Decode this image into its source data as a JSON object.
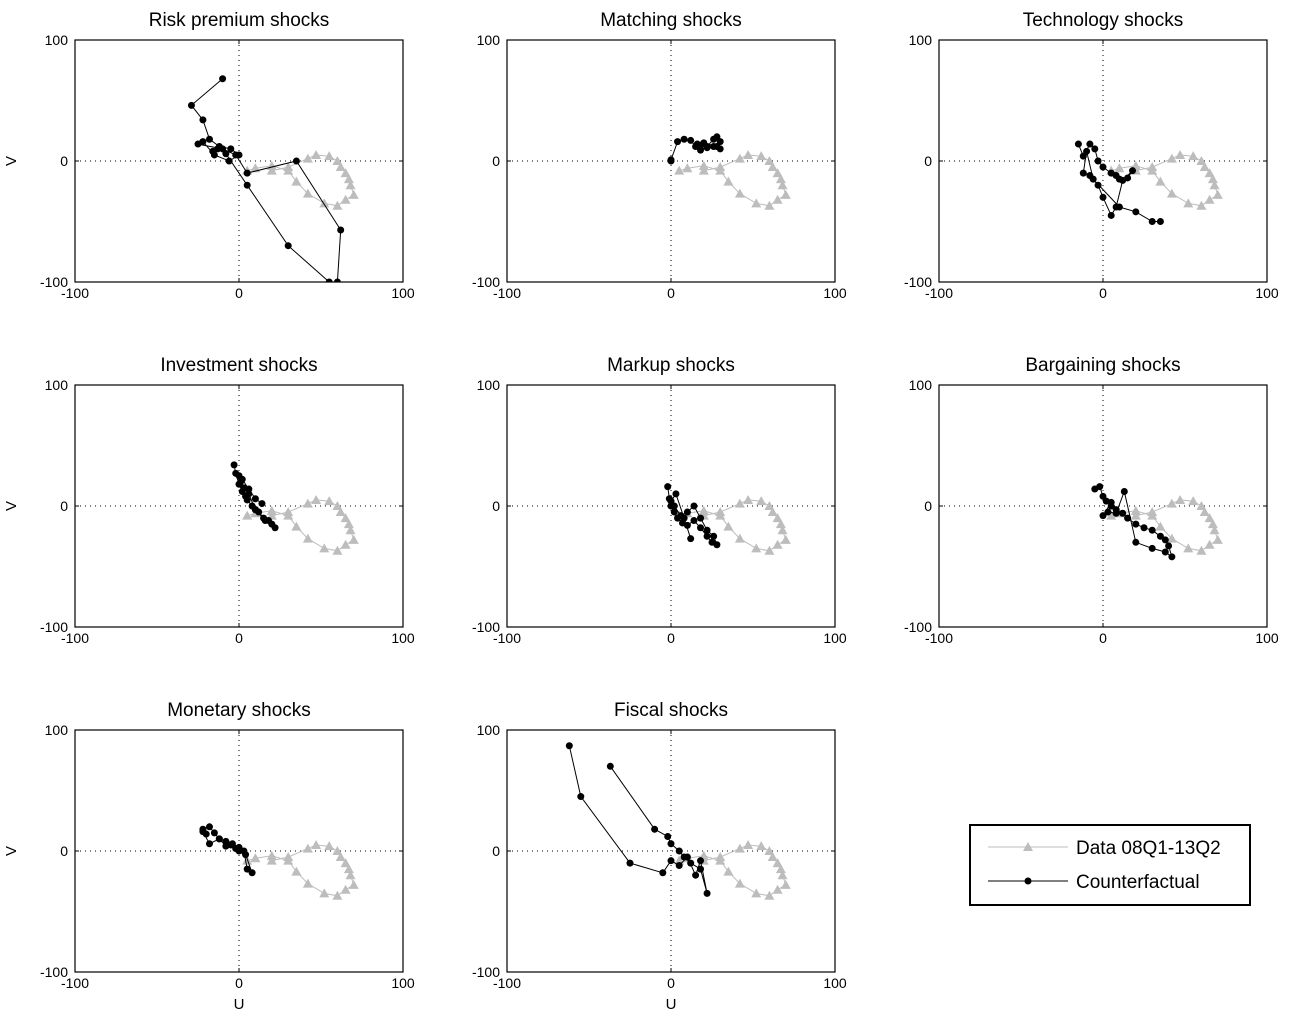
{
  "figure": {
    "xlim": [
      -100,
      100
    ],
    "ylim": [
      -100,
      100
    ],
    "x_ticks": [
      "-100",
      "0",
      "100"
    ],
    "y_ticks": [
      "-100",
      "0",
      "100"
    ],
    "xlabel": "U",
    "ylabel": "V",
    "grid": "dotted zero lines at U=0 and V=0",
    "legend": {
      "placement": "bottom-right (empty ninth panel)",
      "entries": [
        {
          "label": "Data 08Q1-13Q2",
          "color": "#bdbdbd",
          "marker": "triangle"
        },
        {
          "label": "Counterfactual",
          "color": "#000000",
          "marker": "circle"
        }
      ]
    }
  },
  "chart_data": [
    {
      "type": "line",
      "title": "Risk premium shocks",
      "series": [
        {
          "name": "Data 08Q1-13Q2",
          "x": [
            20,
            30,
            42,
            47,
            55,
            60,
            62,
            65,
            67,
            68,
            70,
            65,
            60,
            52,
            42,
            35,
            30,
            20,
            10,
            5
          ],
          "y": [
            -8,
            -5,
            2,
            5,
            4,
            0,
            -5,
            -10,
            -15,
            -20,
            -28,
            -32,
            -37,
            -35,
            -27,
            -17,
            -8,
            -4,
            -6,
            -8
          ]
        },
        {
          "name": "Counterfactual",
          "x": [
            -10,
            -29,
            -22,
            -18,
            -12,
            -5,
            0,
            -6,
            -15,
            -22,
            -25,
            -10,
            -2,
            5,
            35,
            62,
            60,
            55,
            30,
            5,
            -8,
            -13,
            -16
          ],
          "y": [
            68,
            46,
            34,
            18,
            12,
            10,
            5,
            0,
            5,
            16,
            14,
            10,
            5,
            -10,
            0,
            -57,
            -100,
            -100,
            -70,
            -20,
            6,
            10,
            8
          ]
        }
      ]
    },
    {
      "type": "line",
      "title": "Matching shocks",
      "series": [
        {
          "name": "Data 08Q1-13Q2",
          "x": [
            20,
            30,
            42,
            47,
            55,
            60,
            62,
            65,
            67,
            68,
            70,
            65,
            60,
            52,
            42,
            35,
            30,
            20,
            10,
            5
          ],
          "y": [
            -8,
            -5,
            2,
            5,
            4,
            0,
            -5,
            -10,
            -15,
            -20,
            -28,
            -32,
            -37,
            -35,
            -27,
            -17,
            -8,
            -4,
            -6,
            -8
          ]
        },
        {
          "name": "Counterfactual",
          "x": [
            0,
            0,
            4,
            8,
            12,
            15,
            18,
            22,
            26,
            28,
            30,
            26,
            22,
            18,
            16,
            20,
            28,
            30
          ],
          "y": [
            0,
            1,
            16,
            18,
            17,
            12,
            9,
            12,
            18,
            20,
            16,
            12,
            11,
            13,
            14,
            15,
            12,
            10
          ]
        }
      ]
    },
    {
      "type": "line",
      "title": "Technology shocks",
      "series": [
        {
          "name": "Data 08Q1-13Q2",
          "x": [
            20,
            30,
            42,
            47,
            55,
            60,
            62,
            65,
            67,
            68,
            70,
            65,
            60,
            52,
            42,
            35,
            30,
            20,
            10,
            5
          ],
          "y": [
            -8,
            -5,
            2,
            5,
            4,
            0,
            -5,
            -10,
            -15,
            -20,
            -28,
            -32,
            -37,
            -35,
            -27,
            -17,
            -8,
            -4,
            -6,
            -8
          ]
        },
        {
          "name": "Counterfactual",
          "x": [
            -15,
            -12,
            -8,
            -5,
            -3,
            0,
            5,
            8,
            10,
            15,
            18,
            12,
            8,
            5,
            0,
            -3,
            -8,
            -12,
            -10,
            -6,
            10,
            20,
            30,
            35
          ],
          "y": [
            14,
            4,
            14,
            10,
            0,
            -5,
            -10,
            -12,
            -15,
            -14,
            -8,
            -16,
            -38,
            -45,
            -30,
            -20,
            -12,
            -10,
            8,
            -15,
            -38,
            -42,
            -50,
            -50
          ]
        }
      ]
    },
    {
      "type": "line",
      "title": "Investment shocks",
      "series": [
        {
          "name": "Data 08Q1-13Q2",
          "x": [
            20,
            30,
            42,
            47,
            55,
            60,
            62,
            65,
            67,
            68,
            70,
            65,
            60,
            52,
            42,
            35,
            30,
            20,
            10,
            5
          ],
          "y": [
            -8,
            -5,
            2,
            5,
            4,
            0,
            -5,
            -10,
            -15,
            -20,
            -28,
            -32,
            -37,
            -35,
            -27,
            -17,
            -8,
            -4,
            -6,
            -8
          ]
        },
        {
          "name": "Counterfactual",
          "x": [
            -3,
            -2,
            0,
            2,
            4,
            5,
            8,
            10,
            12,
            15,
            18,
            20,
            22,
            16,
            10,
            6,
            3,
            1,
            0,
            2,
            6,
            10,
            14
          ],
          "y": [
            34,
            27,
            18,
            12,
            8,
            5,
            0,
            -3,
            -5,
            -10,
            -12,
            -15,
            -18,
            -12,
            -3,
            10,
            15,
            20,
            25,
            22,
            14,
            6,
            2
          ]
        }
      ]
    },
    {
      "type": "line",
      "title": "Markup shocks",
      "series": [
        {
          "name": "Data 08Q1-13Q2",
          "x": [
            20,
            30,
            42,
            47,
            55,
            60,
            62,
            65,
            67,
            68,
            70,
            65,
            60,
            52,
            42,
            35,
            30,
            20,
            10,
            5
          ],
          "y": [
            -8,
            -5,
            2,
            5,
            4,
            0,
            -5,
            -10,
            -15,
            -20,
            -28,
            -32,
            -37,
            -35,
            -27,
            -17,
            -8,
            -4,
            -6,
            -8
          ]
        },
        {
          "name": "Counterfactual",
          "x": [
            -2,
            -1,
            0,
            2,
            4,
            7,
            10,
            14,
            18,
            22,
            25,
            28,
            26,
            22,
            18,
            14,
            10,
            6,
            2,
            0,
            3,
            8,
            12
          ],
          "y": [
            16,
            6,
            0,
            -5,
            -10,
            -14,
            -16,
            -12,
            -18,
            -25,
            -30,
            -32,
            -25,
            -20,
            -10,
            0,
            -5,
            -8,
            0,
            4,
            10,
            -10,
            -27
          ]
        }
      ]
    },
    {
      "type": "line",
      "title": "Bargaining shocks",
      "series": [
        {
          "name": "Data 08Q1-13Q2",
          "x": [
            20,
            30,
            42,
            47,
            55,
            60,
            62,
            65,
            67,
            68,
            70,
            65,
            60,
            52,
            42,
            35,
            30,
            20,
            10,
            5
          ],
          "y": [
            -8,
            -5,
            2,
            5,
            4,
            0,
            -5,
            -10,
            -15,
            -20,
            -28,
            -32,
            -37,
            -35,
            -27,
            -17,
            -8,
            -4,
            -6,
            -8
          ]
        },
        {
          "name": "Counterfactual",
          "x": [
            -5,
            -2,
            0,
            2,
            5,
            8,
            12,
            15,
            20,
            25,
            30,
            35,
            38,
            40,
            42,
            38,
            30,
            20,
            13,
            8,
            3,
            0,
            5
          ],
          "y": [
            14,
            16,
            8,
            4,
            0,
            -3,
            -6,
            -10,
            -15,
            -18,
            -20,
            -25,
            -28,
            -33,
            -42,
            -38,
            -35,
            -30,
            12,
            -6,
            -5,
            -8,
            3
          ]
        }
      ]
    },
    {
      "type": "line",
      "title": "Monetary shocks",
      "series": [
        {
          "name": "Data 08Q1-13Q2",
          "x": [
            20,
            30,
            42,
            47,
            55,
            60,
            62,
            65,
            67,
            68,
            70,
            65,
            60,
            52,
            42,
            35,
            30,
            20,
            10,
            5
          ],
          "y": [
            -8,
            -5,
            2,
            5,
            4,
            0,
            -5,
            -10,
            -15,
            -20,
            -28,
            -32,
            -37,
            -35,
            -27,
            -17,
            -8,
            -4,
            -6,
            -8
          ]
        },
        {
          "name": "Counterfactual",
          "x": [
            -22,
            -18,
            -15,
            -12,
            -8,
            -5,
            -2,
            0,
            3,
            5,
            8,
            4,
            0,
            -4,
            -8,
            -12,
            -18,
            -22,
            -20
          ],
          "y": [
            18,
            20,
            15,
            10,
            8,
            5,
            2,
            0,
            0,
            -15,
            -18,
            -3,
            3,
            6,
            4,
            10,
            6,
            16,
            14
          ]
        }
      ]
    },
    {
      "type": "line",
      "title": "Fiscal shocks",
      "series": [
        {
          "name": "Data 08Q1-13Q2",
          "x": [
            20,
            30,
            42,
            47,
            55,
            60,
            62,
            65,
            67,
            68,
            70,
            65,
            60,
            52,
            42,
            35,
            30,
            20,
            10,
            5
          ],
          "y": [
            -8,
            -5,
            2,
            5,
            4,
            0,
            -5,
            -10,
            -15,
            -20,
            -28,
            -32,
            -37,
            -35,
            -27,
            -17,
            -8,
            -4,
            -6,
            -8
          ]
        },
        {
          "name": "Counterfactual",
          "x": [
            -62,
            -55,
            -25,
            -5,
            0,
            5,
            10,
            15,
            18,
            22,
            18,
            12,
            8,
            5,
            0,
            -2,
            -10,
            -37
          ],
          "y": [
            87,
            45,
            -10,
            -18,
            -8,
            -12,
            -5,
            -20,
            -8,
            -35,
            -15,
            -10,
            -5,
            0,
            6,
            12,
            18,
            70
          ]
        }
      ]
    }
  ]
}
